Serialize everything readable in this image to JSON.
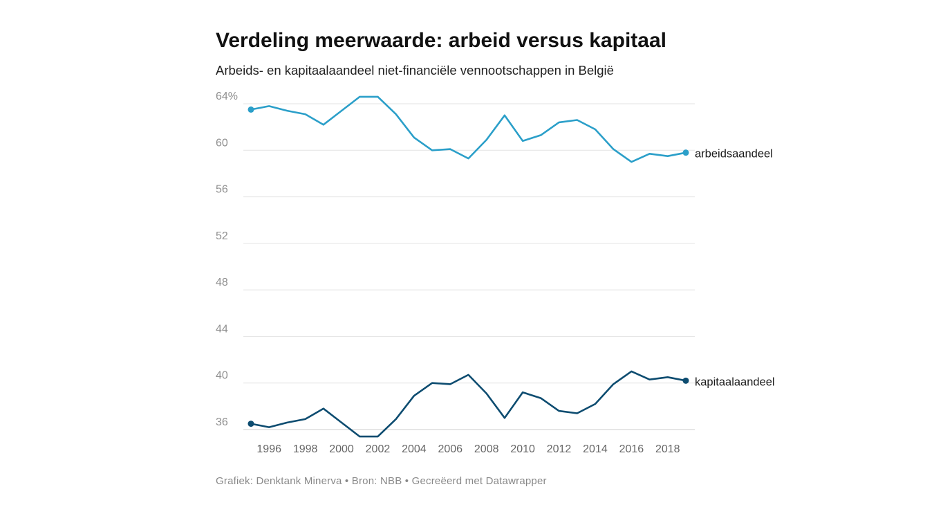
{
  "title": "Verdeling meerwaarde: arbeid versus kapitaal",
  "subtitle": "Arbeids- en kapitaalaandeel niet-financiële vennootschappen in België",
  "footer": "Grafiek: Denktank Minerva • Bron: NBB • Gecreëerd met Datawrapper",
  "colors": {
    "arbeid": "#2b9fc9",
    "kapitaal": "#0d4c70"
  },
  "chart_data": {
    "type": "line",
    "title": "Verdeling meerwaarde: arbeid versus kapitaal",
    "subtitle": "Arbeids- en kapitaalaandeel niet-financiële vennootschappen in België",
    "xlabel": "",
    "ylabel": "",
    "x": [
      1995,
      1996,
      1997,
      1998,
      1999,
      2000,
      2001,
      2002,
      2003,
      2004,
      2005,
      2006,
      2007,
      2008,
      2009,
      2010,
      2011,
      2012,
      2013,
      2014,
      2015,
      2016,
      2017,
      2018,
      2019
    ],
    "series": [
      {
        "name": "arbeidsaandeel",
        "values": [
          63.5,
          63.8,
          63.4,
          63.1,
          62.2,
          63.4,
          64.6,
          64.6,
          63.1,
          61.1,
          60.0,
          60.1,
          59.3,
          60.9,
          63.0,
          60.8,
          61.3,
          62.4,
          62.6,
          61.8,
          60.1,
          59.0,
          59.7,
          59.5,
          59.8
        ]
      },
      {
        "name": "kapitaalaandeel",
        "values": [
          36.5,
          36.2,
          36.6,
          36.9,
          37.8,
          36.6,
          35.4,
          35.4,
          36.9,
          38.9,
          40.0,
          39.9,
          40.7,
          39.1,
          37.0,
          39.2,
          38.7,
          37.6,
          37.4,
          38.2,
          39.9,
          41.0,
          40.3,
          40.5,
          40.2
        ]
      }
    ],
    "x_ticks": [
      "1996",
      "1998",
      "2000",
      "2002",
      "2004",
      "2006",
      "2008",
      "2010",
      "2012",
      "2014",
      "2016",
      "2018"
    ],
    "y_ticks": [
      "36",
      "40",
      "44",
      "48",
      "52",
      "56",
      "60",
      "64%"
    ],
    "y_tick_values": [
      36,
      40,
      44,
      48,
      52,
      56,
      60,
      64
    ],
    "ylim": [
      36,
      64
    ],
    "xlim": [
      1995,
      2019
    ],
    "grid": true,
    "legend": "direct labels at line ends"
  }
}
